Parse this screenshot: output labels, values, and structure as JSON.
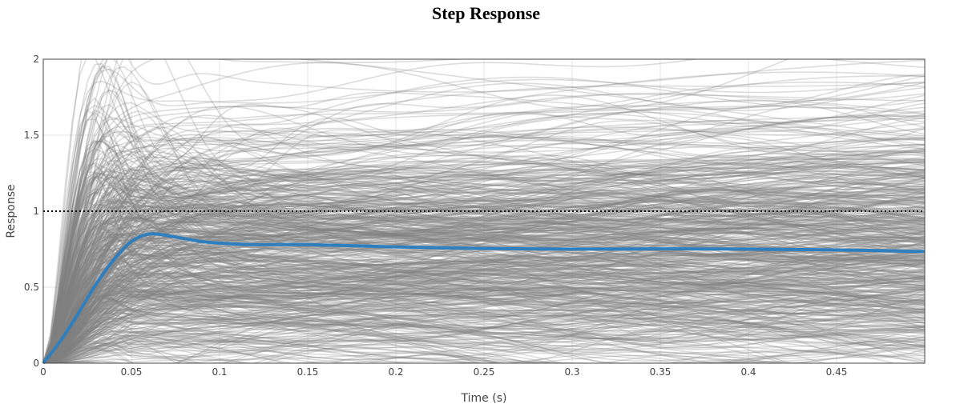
{
  "chart_data": {
    "type": "line",
    "title": "Step Response",
    "xlabel": "Time (s)",
    "ylabel": "Response",
    "xlim": [
      0,
      0.5
    ],
    "ylim": [
      0,
      2
    ],
    "xticks": [
      "0",
      "0.05",
      "0.1",
      "0.15",
      "0.2",
      "0.25",
      "0.3",
      "0.35",
      "0.4",
      "0.45"
    ],
    "xtick_values": [
      0,
      0.05,
      0.1,
      0.15,
      0.2,
      0.25,
      0.3,
      0.35,
      0.4,
      0.45
    ],
    "yticks": [
      "0",
      "0.5",
      "1",
      "1.5",
      "2"
    ],
    "ytick_values": [
      0,
      0.5,
      1,
      1.5,
      2
    ],
    "grid": true,
    "reference_line": {
      "y": 1,
      "style": "dotted",
      "color": "#000000"
    },
    "ensemble": {
      "count": 600,
      "color": "#808080",
      "opacity": 0.28
    },
    "mean_series": {
      "color": "#2f7fbf",
      "x": [
        0,
        0.01,
        0.02,
        0.03,
        0.04,
        0.05,
        0.06,
        0.07,
        0.08,
        0.09,
        0.1,
        0.12,
        0.15,
        0.2,
        0.25,
        0.3,
        0.35,
        0.4,
        0.45,
        0.5
      ],
      "y": [
        0,
        0.15,
        0.33,
        0.52,
        0.68,
        0.8,
        0.85,
        0.84,
        0.82,
        0.8,
        0.79,
        0.78,
        0.78,
        0.765,
        0.755,
        0.75,
        0.752,
        0.75,
        0.745,
        0.735
      ]
    }
  }
}
